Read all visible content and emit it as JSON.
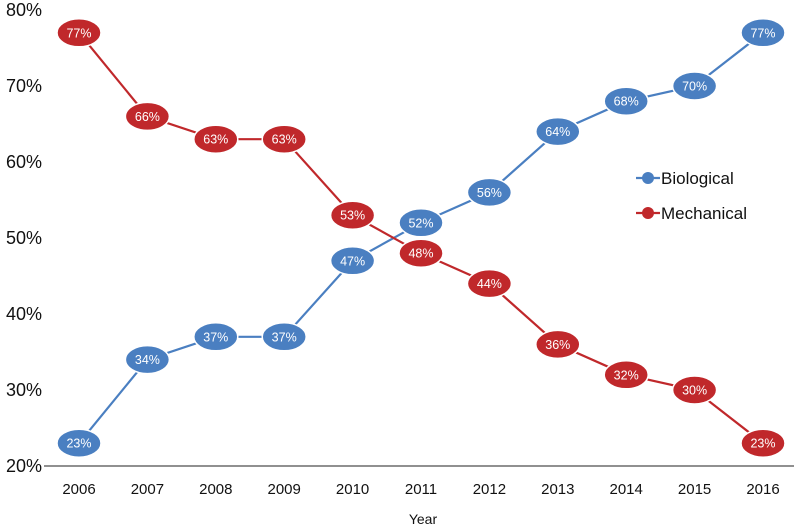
{
  "chart_data": {
    "type": "line",
    "title": "",
    "xlabel": "Year",
    "ylabel": "",
    "categories": [
      "2006",
      "2007",
      "2008",
      "2009",
      "2010",
      "2011",
      "2012",
      "2013",
      "2014",
      "2015",
      "2016"
    ],
    "ylim": [
      20,
      80
    ],
    "y_ticks": [
      "20%",
      "30%",
      "40%",
      "50%",
      "60%",
      "70%",
      "80%"
    ],
    "grid": false,
    "legend_position": "right",
    "series": [
      {
        "name": "Biological",
        "color": "#4a7fc1",
        "values": [
          23,
          34,
          37,
          37,
          47,
          52,
          56,
          64,
          68,
          70,
          77
        ],
        "labels": [
          "23%",
          "34%",
          "37%",
          "37%",
          "47%",
          "52%",
          "56%",
          "64%",
          "68%",
          "70%",
          "77%"
        ]
      },
      {
        "name": "Mechanical",
        "color": "#c0282b",
        "values": [
          77,
          66,
          63,
          63,
          53,
          48,
          44,
          36,
          32,
          30,
          23
        ],
        "labels": [
          "77%",
          "66%",
          "63%",
          "63%",
          "53%",
          "48%",
          "44%",
          "36%",
          "32%",
          "30%",
          "23%"
        ]
      }
    ]
  }
}
